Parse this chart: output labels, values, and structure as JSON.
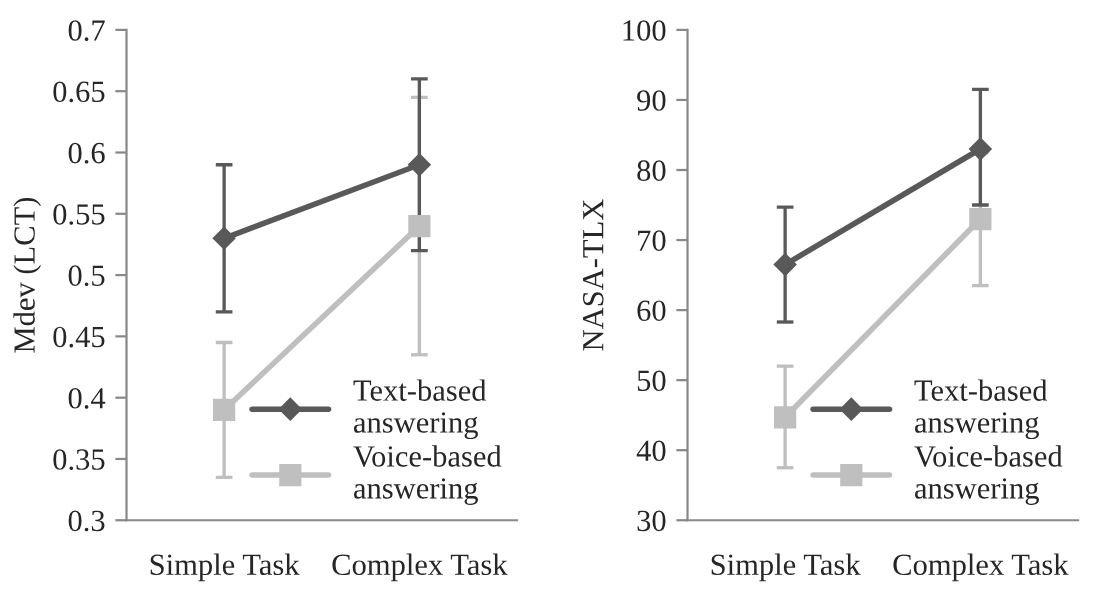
{
  "chart_data": [
    {
      "type": "line",
      "ylabel": "Mdev (LCT)",
      "categories": [
        "Simple Task",
        "Complex Task"
      ],
      "ylim": [
        0.3,
        0.7
      ],
      "yticks": [
        0.3,
        0.35,
        0.4,
        0.45,
        0.5,
        0.55,
        0.6,
        0.65,
        0.7
      ],
      "legend": "bottom right",
      "grid": false,
      "series": [
        {
          "name": "Text-based answering",
          "color": "#595959",
          "marker": "diamond",
          "values": [
            0.53,
            0.59
          ],
          "errors": [
            [
              0.47,
              0.59
            ],
            [
              0.52,
              0.66
            ]
          ]
        },
        {
          "name": "Voice-based answering",
          "color": "#bfbfbf",
          "marker": "square",
          "values": [
            0.39,
            0.54
          ],
          "errors": [
            [
              0.335,
              0.445
            ],
            [
              0.435,
              0.645
            ]
          ]
        }
      ]
    },
    {
      "type": "line",
      "ylabel": "NASA-TLX",
      "categories": [
        "Simple Task",
        "Complex Task"
      ],
      "ylim": [
        30,
        100
      ],
      "yticks": [
        30,
        40,
        50,
        60,
        70,
        80,
        90,
        100
      ],
      "legend": "bottom right",
      "grid": false,
      "series": [
        {
          "name": "Text-based answering",
          "color": "#595959",
          "marker": "diamond",
          "values": [
            66.5,
            83
          ],
          "errors": [
            [
              58.3,
              74.7
            ],
            [
              75,
              91.5
            ]
          ]
        },
        {
          "name": "Voice-based answering",
          "color": "#bfbfbf",
          "marker": "square",
          "values": [
            44.7,
            73
          ],
          "errors": [
            [
              37.5,
              52
            ],
            [
              63.5,
              82.5
            ]
          ]
        }
      ]
    }
  ]
}
